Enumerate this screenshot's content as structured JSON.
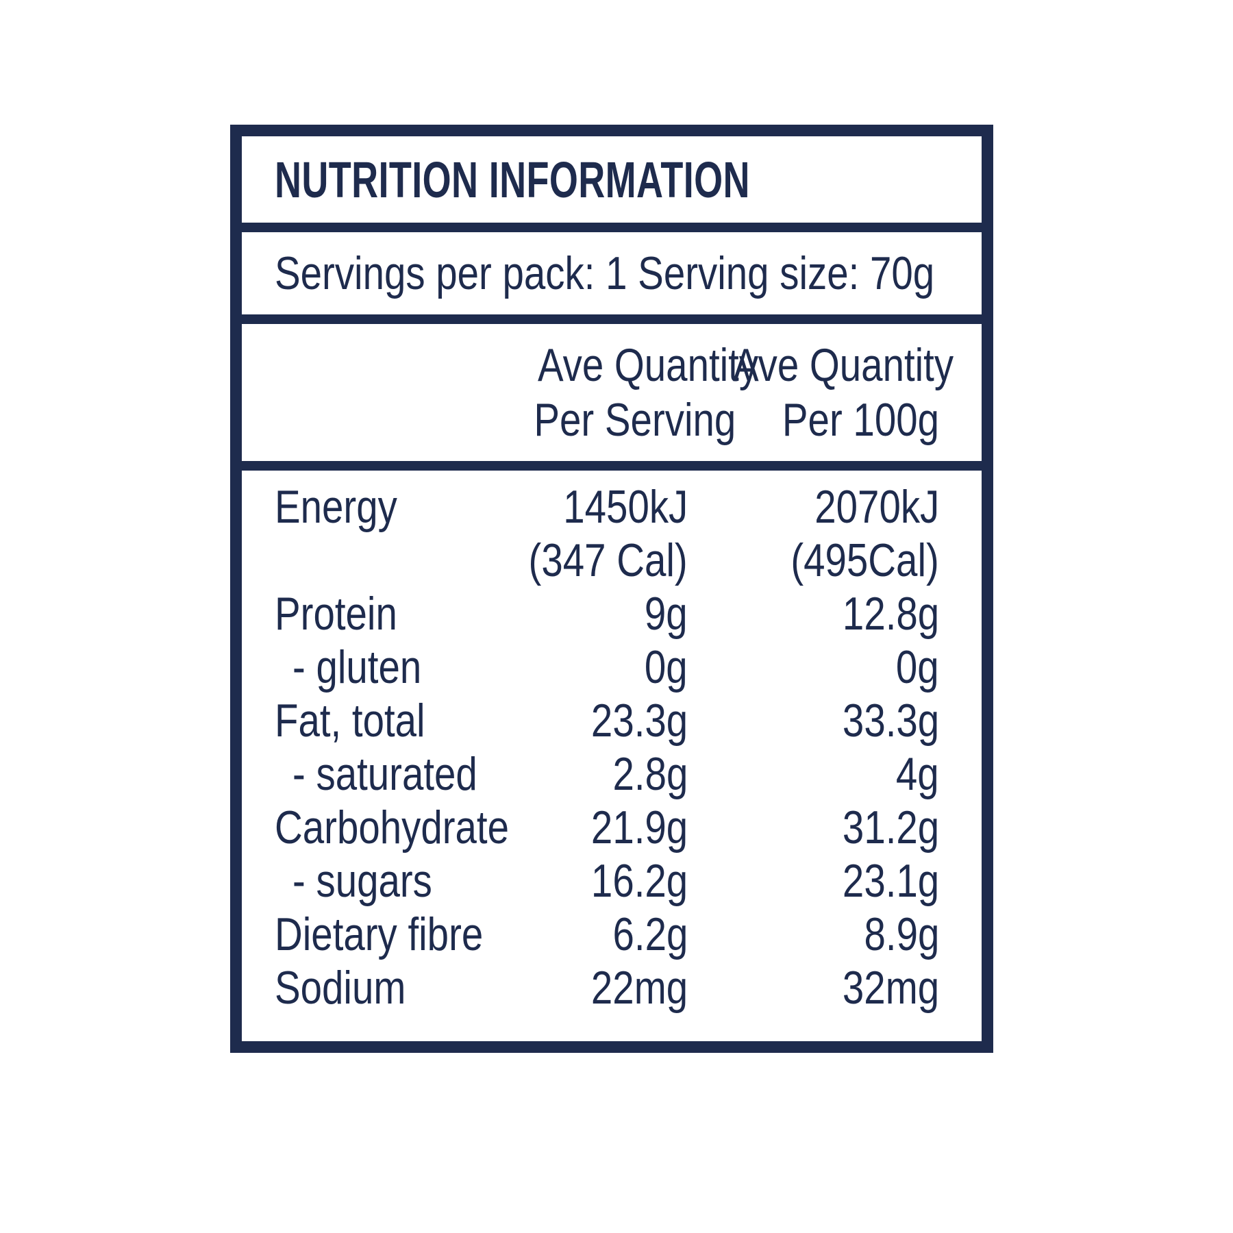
{
  "colors": {
    "navy": "#1e2b4d",
    "background": "#ffffff"
  },
  "panel": {
    "title": "NUTRITION INFORMATION",
    "servings_line": "Servings per pack: 1 Serving size: 70g"
  },
  "column_headers": {
    "per_serving": [
      "Ave Quantity",
      "Per Serving"
    ],
    "per_100g": [
      "Ave Quantity",
      "Per 100g"
    ]
  },
  "table": {
    "rows": [
      {
        "label": "Energy",
        "per_serving": "1450kJ",
        "per_100g": "2070kJ",
        "indent": false
      },
      {
        "label": "",
        "per_serving": "(347 Cal)",
        "per_100g": "(495Cal)",
        "indent": false
      },
      {
        "label": "Protein",
        "per_serving": "9g",
        "per_100g": "12.8g",
        "indent": false
      },
      {
        "label": "- gluten",
        "per_serving": "0g",
        "per_100g": "0g",
        "indent": true
      },
      {
        "label": "Fat, total",
        "per_serving": "23.3g",
        "per_100g": "33.3g",
        "indent": false
      },
      {
        "label": "- saturated",
        "per_serving": "2.8g",
        "per_100g": "4g",
        "indent": true
      },
      {
        "label": "Carbohydrate",
        "per_serving": "21.9g",
        "per_100g": "31.2g",
        "indent": false
      },
      {
        "label": "- sugars",
        "per_serving": "16.2g",
        "per_100g": "23.1g",
        "indent": true
      },
      {
        "label": "Dietary fibre",
        "per_serving": "6.2g",
        "per_100g": "8.9g",
        "indent": false
      },
      {
        "label": "Sodium",
        "per_serving": "22mg",
        "per_100g": "32mg",
        "indent": false
      }
    ]
  }
}
